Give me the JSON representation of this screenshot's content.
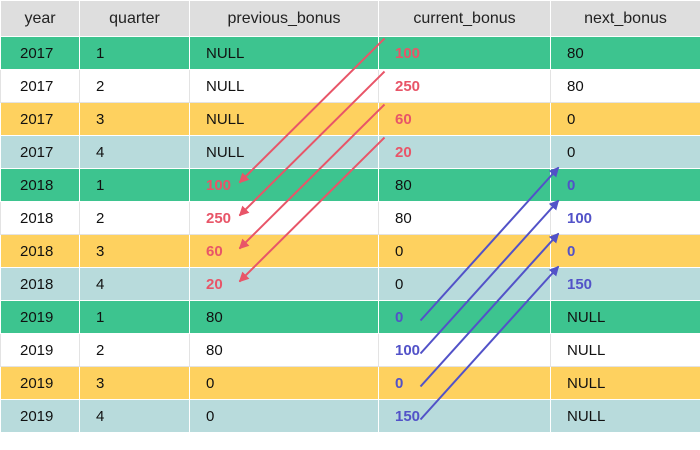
{
  "headers": [
    "year",
    "quarter",
    "previous_bonus",
    "current_bonus",
    "next_bonus"
  ],
  "rows": [
    {
      "year": "2017",
      "quarter": "1",
      "previous_bonus": "NULL",
      "current_bonus": "100",
      "next_bonus": "80",
      "color": "green"
    },
    {
      "year": "2017",
      "quarter": "2",
      "previous_bonus": "NULL",
      "current_bonus": "250",
      "next_bonus": "80",
      "color": "white"
    },
    {
      "year": "2017",
      "quarter": "3",
      "previous_bonus": "NULL",
      "current_bonus": "60",
      "next_bonus": "0",
      "color": "yellow"
    },
    {
      "year": "2017",
      "quarter": "4",
      "previous_bonus": "NULL",
      "current_bonus": "20",
      "next_bonus": "0",
      "color": "blue"
    },
    {
      "year": "2018",
      "quarter": "1",
      "previous_bonus": "100",
      "current_bonus": "80",
      "next_bonus": "0",
      "color": "green"
    },
    {
      "year": "2018",
      "quarter": "2",
      "previous_bonus": "250",
      "current_bonus": "80",
      "next_bonus": "100",
      "color": "white"
    },
    {
      "year": "2018",
      "quarter": "3",
      "previous_bonus": "60",
      "current_bonus": "0",
      "next_bonus": "0",
      "color": "yellow"
    },
    {
      "year": "2018",
      "quarter": "4",
      "previous_bonus": "20",
      "current_bonus": "0",
      "next_bonus": "150",
      "color": "blue"
    },
    {
      "year": "2019",
      "quarter": "1",
      "previous_bonus": "80",
      "current_bonus": "0",
      "next_bonus": "NULL",
      "color": "green"
    },
    {
      "year": "2019",
      "quarter": "2",
      "previous_bonus": "80",
      "current_bonus": "100",
      "next_bonus": "NULL",
      "color": "white"
    },
    {
      "year": "2019",
      "quarter": "3",
      "previous_bonus": "0",
      "current_bonus": "0",
      "next_bonus": "NULL",
      "color": "yellow"
    },
    {
      "year": "2019",
      "quarter": "4",
      "previous_bonus": "0",
      "current_bonus": "150",
      "next_bonus": "NULL",
      "color": "blue"
    }
  ],
  "highlights": [
    {
      "row": 0,
      "col": "current_bonus",
      "style": "red"
    },
    {
      "row": 1,
      "col": "current_bonus",
      "style": "red"
    },
    {
      "row": 2,
      "col": "current_bonus",
      "style": "red"
    },
    {
      "row": 3,
      "col": "current_bonus",
      "style": "red"
    },
    {
      "row": 4,
      "col": "previous_bonus",
      "style": "red"
    },
    {
      "row": 5,
      "col": "previous_bonus",
      "style": "red"
    },
    {
      "row": 6,
      "col": "previous_bonus",
      "style": "red"
    },
    {
      "row": 7,
      "col": "previous_bonus",
      "style": "red"
    },
    {
      "row": 8,
      "col": "current_bonus",
      "style": "violet"
    },
    {
      "row": 9,
      "col": "current_bonus",
      "style": "violet"
    },
    {
      "row": 10,
      "col": "current_bonus",
      "style": "violet"
    },
    {
      "row": 11,
      "col": "current_bonus",
      "style": "violet"
    },
    {
      "row": 4,
      "col": "next_bonus",
      "style": "violet"
    },
    {
      "row": 5,
      "col": "next_bonus",
      "style": "violet"
    },
    {
      "row": 6,
      "col": "next_bonus",
      "style": "violet"
    },
    {
      "row": 7,
      "col": "next_bonus",
      "style": "violet"
    }
  ],
  "arrows": [
    {
      "from": {
        "row": 0,
        "col": "current_bonus"
      },
      "to": {
        "row": 4,
        "col": "previous_bonus"
      },
      "color": "#e85568"
    },
    {
      "from": {
        "row": 1,
        "col": "current_bonus"
      },
      "to": {
        "row": 5,
        "col": "previous_bonus"
      },
      "color": "#e85568"
    },
    {
      "from": {
        "row": 2,
        "col": "current_bonus"
      },
      "to": {
        "row": 6,
        "col": "previous_bonus"
      },
      "color": "#e85568"
    },
    {
      "from": {
        "row": 3,
        "col": "current_bonus"
      },
      "to": {
        "row": 7,
        "col": "previous_bonus"
      },
      "color": "#e85568"
    },
    {
      "from": {
        "row": 8,
        "col": "current_bonus"
      },
      "to": {
        "row": 4,
        "col": "next_bonus"
      },
      "color": "#5252c8"
    },
    {
      "from": {
        "row": 9,
        "col": "current_bonus"
      },
      "to": {
        "row": 5,
        "col": "next_bonus"
      },
      "color": "#5252c8"
    },
    {
      "from": {
        "row": 10,
        "col": "current_bonus"
      },
      "to": {
        "row": 6,
        "col": "next_bonus"
      },
      "color": "#5252c8"
    },
    {
      "from": {
        "row": 11,
        "col": "current_bonus"
      },
      "to": {
        "row": 7,
        "col": "next_bonus"
      },
      "color": "#5252c8"
    }
  ]
}
